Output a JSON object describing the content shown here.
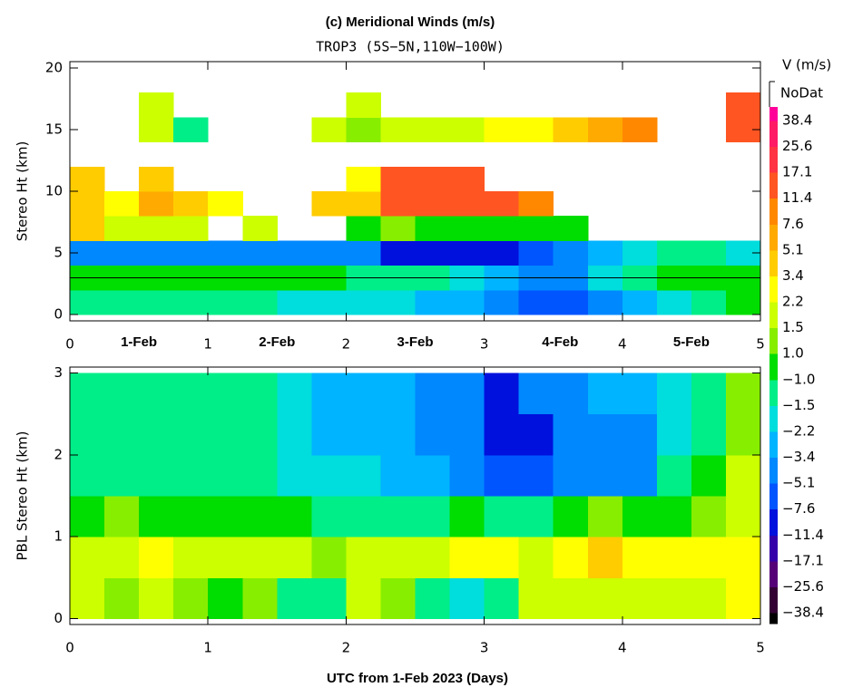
{
  "chart_data": [
    {
      "type": "heatmap",
      "title": "(c) Meridional Winds (m/s)",
      "subtitle": "TROP3 (5S−5N,110W−100W)",
      "y_label": "Stereo Ht (km)",
      "x_edges": [
        0,
        0.25,
        0.5,
        0.75,
        1,
        1.25,
        1.5,
        1.75,
        2,
        2.25,
        2.5,
        2.75,
        3,
        3.25,
        3.5,
        3.75,
        4,
        4.25,
        4.5,
        4.75,
        5
      ],
      "y_edges": [
        0,
        2,
        4,
        6,
        8,
        10,
        12,
        14,
        16,
        18,
        20
      ],
      "values": [
        [
          -1.2,
          -1.2,
          -1.3,
          -1.3,
          -1.5,
          -1.5,
          -1.8,
          -2,
          -2,
          -2,
          -2.5,
          -3,
          -4,
          -6,
          -6,
          -4,
          -2.5,
          -2,
          -1.5,
          0.5
        ],
        [
          0.5,
          0.5,
          0.5,
          0.5,
          0.5,
          0.5,
          0.5,
          0.5,
          -1.2,
          -1.5,
          -1.5,
          -2,
          -3,
          -4,
          -4,
          -2,
          -1.2,
          0.5,
          0.5,
          0.5
        ],
        [
          -4,
          -4,
          -4,
          -4,
          -4,
          -4,
          -4,
          -4,
          -5,
          -8,
          -9,
          -9,
          -8,
          -6,
          -5,
          -3,
          -2,
          -1.5,
          -1.5,
          -2
        ],
        [
          3.5,
          2,
          2,
          1.5,
          null,
          1.5,
          null,
          null,
          0.5,
          1.2,
          0.5,
          0.5,
          0.5,
          0.5,
          0.5,
          null,
          null,
          null,
          null,
          null
        ],
        [
          5,
          3,
          6,
          4,
          3,
          null,
          null,
          4,
          5,
          15,
          15,
          15,
          15,
          10,
          null,
          null,
          null,
          null,
          null,
          null
        ],
        [
          4,
          null,
          5,
          null,
          null,
          null,
          null,
          null,
          3,
          15,
          15,
          15,
          null,
          null,
          null,
          null,
          null,
          null,
          null,
          null
        ],
        [
          null,
          null,
          null,
          null,
          null,
          null,
          null,
          null,
          null,
          null,
          null,
          null,
          null,
          null,
          null,
          null,
          null,
          null,
          null,
          null
        ],
        [
          null,
          null,
          1.5,
          -1.2,
          null,
          null,
          null,
          1.5,
          1.2,
          1.5,
          2,
          1.5,
          2.5,
          3,
          5,
          7,
          10,
          null,
          null,
          12
        ],
        [
          null,
          null,
          2,
          null,
          null,
          null,
          null,
          null,
          2,
          null,
          null,
          null,
          null,
          null,
          null,
          null,
          null,
          null,
          null,
          12
        ],
        [
          null,
          null,
          null,
          null,
          null,
          null,
          null,
          null,
          null,
          null,
          null,
          null,
          null,
          null,
          null,
          null,
          null,
          null,
          null,
          null
        ]
      ],
      "xlim": [
        0,
        5
      ],
      "ylim": [
        -0.5,
        20.5
      ],
      "xticks": [
        0,
        1,
        2,
        3,
        4,
        5
      ],
      "yticks": [
        0,
        5,
        10,
        15,
        20
      ],
      "reference_line": 3,
      "annotations": [
        {
          "text": "1-Feb",
          "x": 0.5
        },
        {
          "text": "2-Feb",
          "x": 1.5
        },
        {
          "text": "3-Feb",
          "x": 2.5
        },
        {
          "text": "4-Feb",
          "x": 3.55
        },
        {
          "text": "5-Feb",
          "x": 4.5
        }
      ]
    },
    {
      "type": "heatmap",
      "y_label": "PBL Stereo Ht (km)",
      "x_label": "UTC from 1-Feb 2023 (Days)",
      "x_edges": [
        0,
        0.25,
        0.5,
        0.75,
        1,
        1.25,
        1.5,
        1.75,
        2,
        2.25,
        2.5,
        2.75,
        3,
        3.25,
        3.5,
        3.75,
        4,
        4.25,
        4.5,
        4.75,
        5
      ],
      "y_edges": [
        0,
        0.5,
        1,
        1.5,
        2,
        2.5,
        3
      ],
      "values": [
        [
          1.5,
          1.2,
          1.5,
          1.2,
          0.5,
          1.2,
          -1.2,
          -1.5,
          1.5,
          1.2,
          -1.5,
          -2,
          -1.5,
          1.5,
          1.5,
          2,
          2,
          1.5,
          2,
          2.5
        ],
        [
          1.5,
          2,
          2.2,
          2,
          1.5,
          2,
          1.5,
          1.2,
          2,
          1.5,
          1.5,
          2.5,
          2.5,
          2,
          3,
          5,
          2.5,
          2.2,
          2.5,
          2.8
        ],
        [
          0.5,
          1.2,
          0.5,
          0.5,
          0.5,
          0.5,
          0.5,
          -1.2,
          -1.2,
          -1.5,
          -1.5,
          0.5,
          -1.5,
          -1.2,
          0.5,
          1.2,
          0.5,
          0.5,
          1.2,
          2
        ],
        [
          -1.2,
          -1.2,
          -1.2,
          -1.2,
          -1.2,
          -1.5,
          -1.8,
          -2.2,
          -2.2,
          -2.5,
          -3,
          -4,
          -6,
          -6,
          -4,
          -4,
          -4,
          -1.2,
          0.5,
          1.5
        ],
        [
          -1.5,
          -1.5,
          -1.5,
          -1.2,
          -1.2,
          -1.5,
          -2,
          -2.5,
          -2.5,
          -3,
          -3.5,
          -4,
          -8,
          -8,
          -4,
          -4,
          -4,
          -2,
          -1.2,
          1.2
        ],
        [
          -1.5,
          -1.5,
          -1.2,
          -1.2,
          -1.2,
          -1.5,
          -2,
          -2.5,
          -2.5,
          -3,
          -3.5,
          -4,
          -8,
          -5,
          -4,
          -3,
          -2.5,
          -2,
          -1.2,
          1.2
        ]
      ],
      "xlim": [
        0,
        5
      ],
      "ylim": [
        -0.07,
        3.07
      ],
      "xticks": [
        0,
        1,
        2,
        3,
        4,
        5
      ],
      "yticks": [
        0,
        1,
        2,
        3
      ]
    },
    {
      "type": "colorbar",
      "title": "V (m/s)",
      "nodata_label": "NoDat",
      "levels": [
        {
          "value": -38.4,
          "label": "−38.4"
        },
        {
          "value": -25.6,
          "label": "−25.6"
        },
        {
          "value": -17.1,
          "label": "−17.1"
        },
        {
          "value": -11.4,
          "label": "−11.4"
        },
        {
          "value": -7.6,
          "label": "−7.6"
        },
        {
          "value": -5.1,
          "label": "−5.1"
        },
        {
          "value": -3.4,
          "label": "−3.4"
        },
        {
          "value": -2.2,
          "label": "−2.2"
        },
        {
          "value": -1.5,
          "label": "−1.5"
        },
        {
          "value": -1,
          "label": "−1.0"
        },
        {
          "value": 1,
          "label": "1.0"
        },
        1.5,
        2.2,
        3.4,
        5.1,
        7.6,
        11.4,
        17.1,
        25.6,
        38.4
      ],
      "colors": [
        "#000000",
        "#330033",
        "#550077",
        "#3300aa",
        "#0011dd",
        "#0055ff",
        "#0088ff",
        "#00b4ff",
        "#00dddd",
        "#00ee88",
        "#00dd00",
        "#88ee00",
        "#ccff00",
        "#ffff00",
        "#ffcc00",
        "#ffaa00",
        "#ff8800",
        "#ff5522",
        "#ff3344",
        "#ff1a66",
        "#ff0099"
      ]
    }
  ]
}
